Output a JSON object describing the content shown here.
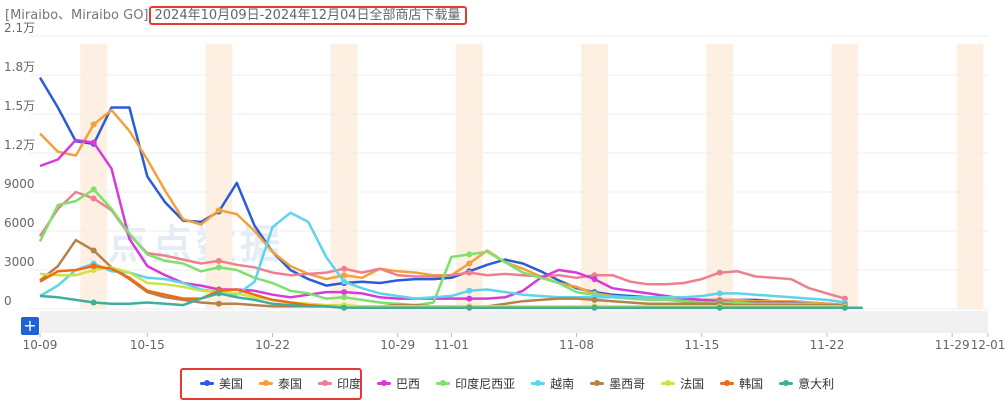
{
  "title": {
    "app": "[Miraibo、Miraibo GO]",
    "range": "2024年10月09日-2024年12月04日全部商店下载量"
  },
  "watermark": "点点数据",
  "add_button": "+",
  "colors": {
    "highlight_border": "#e53935",
    "holiday_band": "#fdf0e2",
    "grid": "#eeeeee"
  },
  "chart_data": {
    "type": "line",
    "title": "2024年10月09日-2024年12月04日全部商店下载量",
    "ylim": [
      0,
      21000
    ],
    "y_ticks": [
      0,
      3000,
      6000,
      9000,
      12000,
      15000,
      18000,
      21000
    ],
    "y_tick_labels": [
      "0",
      "3000",
      "6000",
      "9000",
      "1.2万",
      "1.5万",
      "1.8万",
      "2.1万"
    ],
    "x_range": [
      "2024-10-09",
      "2024-12-01"
    ],
    "x_ticks": [
      "10-09",
      "10-15",
      "10-22",
      "10-29",
      "11-01",
      "11-08",
      "11-15",
      "11-22",
      "11-29",
      "12-01"
    ],
    "x_tick_dates": [
      "2024-10-09",
      "2024-10-15",
      "2024-10-22",
      "2024-10-29",
      "2024-11-01",
      "2024-11-08",
      "2024-11-15",
      "2024-11-22",
      "2024-11-29",
      "2024-12-01"
    ],
    "highlight_dates": [
      "2024-10-12",
      "2024-10-19",
      "2024-10-26",
      "2024-11-02",
      "2024-11-09",
      "2024-11-16",
      "2024-11-23",
      "2024-11-30"
    ],
    "grid": true,
    "legend_position": "bottom",
    "highlighted_series": [
      "美国",
      "泰国",
      "印度"
    ],
    "dates": [
      "2024-10-09",
      "2024-10-10",
      "2024-10-11",
      "2024-10-12",
      "2024-10-13",
      "2024-10-14",
      "2024-10-15",
      "2024-10-16",
      "2024-10-17",
      "2024-10-18",
      "2024-10-19",
      "2024-10-20",
      "2024-10-21",
      "2024-10-22",
      "2024-10-23",
      "2024-10-24",
      "2024-10-25",
      "2024-10-26",
      "2024-10-27",
      "2024-10-28",
      "2024-10-29",
      "2024-10-30",
      "2024-10-31",
      "2024-11-01",
      "2024-11-02",
      "2024-11-03",
      "2024-11-04",
      "2024-11-05",
      "2024-11-06",
      "2024-11-07",
      "2024-11-08",
      "2024-11-09",
      "2024-11-10",
      "2024-11-11",
      "2024-11-12",
      "2024-11-13",
      "2024-11-14",
      "2024-11-15",
      "2024-11-16",
      "2024-11-17",
      "2024-11-18",
      "2024-11-19",
      "2024-11-20",
      "2024-11-21",
      "2024-11-22",
      "2024-11-23",
      "2024-11-24",
      "2024-11-25",
      "2024-11-26",
      "2024-11-27",
      "2024-11-28",
      "2024-11-29",
      "2024-11-30",
      "2024-12-01"
    ],
    "series": [
      {
        "name": "美国",
        "color": "#2b5bd8",
        "values": [
          17800,
          15500,
          12900,
          12700,
          15500,
          15500,
          10200,
          8200,
          6800,
          6700,
          7500,
          9700,
          6400,
          4400,
          3000,
          2300,
          1800,
          2000,
          2100,
          2000,
          2200,
          2300,
          2300,
          2400,
          2900,
          3400,
          3800,
          3500,
          2900,
          2200,
          1600,
          1300,
          1100,
          1000,
          900,
          900,
          800,
          700,
          700,
          700,
          700,
          600,
          600,
          500,
          400,
          300,
          null,
          null,
          null,
          null,
          null,
          null,
          null,
          null
        ]
      },
      {
        "name": "泰国",
        "color": "#f2a23c",
        "values": [
          13500,
          12100,
          11800,
          14200,
          15300,
          13700,
          11500,
          9100,
          6900,
          6500,
          7600,
          7300,
          6000,
          4400,
          3300,
          2700,
          2300,
          2600,
          2400,
          3100,
          2900,
          2800,
          2600,
          2600,
          3500,
          4500,
          3600,
          3100,
          2500,
          2000,
          1700,
          1200,
          1000,
          900,
          800,
          800,
          800,
          700,
          700,
          700,
          600,
          600,
          600,
          500,
          400,
          300,
          null,
          null,
          null,
          null,
          null,
          null,
          null,
          null
        ]
      },
      {
        "name": "印度",
        "color": "#ee7f8f",
        "values": [
          5600,
          7700,
          9000,
          8500,
          7600,
          5700,
          4300,
          4100,
          3800,
          3500,
          3700,
          3400,
          3200,
          2800,
          2600,
          2700,
          2800,
          3100,
          2800,
          3100,
          2600,
          2500,
          2500,
          2600,
          2800,
          2600,
          2700,
          2600,
          2500,
          2600,
          2400,
          2600,
          2600,
          2100,
          1900,
          1900,
          2000,
          2300,
          2800,
          2900,
          2500,
          2400,
          2300,
          1600,
          1200,
          800,
          null,
          null,
          null,
          null,
          null,
          null,
          null,
          null
        ]
      },
      {
        "name": "巴西",
        "color": "#d63ad9",
        "values": [
          11000,
          11500,
          13000,
          12800,
          10800,
          5400,
          3300,
          2600,
          2000,
          1800,
          1500,
          1500,
          1400,
          1100,
          900,
          1100,
          1300,
          1300,
          1200,
          900,
          800,
          800,
          800,
          800,
          800,
          800,
          900,
          1400,
          2400,
          3000,
          2800,
          2300,
          1600,
          1400,
          1200,
          1000,
          800,
          700,
          600,
          500,
          500,
          500,
          500,
          400,
          300,
          300,
          null,
          null,
          null,
          null,
          null,
          null,
          null,
          null
        ]
      },
      {
        "name": "印度尼西亚",
        "color": "#7fe06d",
        "values": [
          5200,
          8000,
          8300,
          9200,
          7700,
          5800,
          4200,
          3700,
          3500,
          2900,
          3200,
          3000,
          2400,
          2000,
          1400,
          1200,
          800,
          900,
          700,
          500,
          400,
          300,
          500,
          4000,
          4200,
          4400,
          3600,
          2800,
          2400,
          2000,
          1300,
          1100,
          900,
          800,
          700,
          700,
          600,
          500,
          500,
          500,
          400,
          400,
          400,
          400,
          300,
          300,
          null,
          null,
          null,
          null,
          null,
          null,
          null,
          null
        ]
      },
      {
        "name": "越南",
        "color": "#5dd4ea",
        "values": [
          1000,
          1800,
          3000,
          3500,
          2900,
          2800,
          2400,
          2300,
          2000,
          1500,
          1300,
          1100,
          2100,
          6300,
          7400,
          6700,
          4000,
          2100,
          1600,
          1200,
          1000,
          800,
          900,
          1000,
          1400,
          1500,
          1300,
          1100,
          1000,
          900,
          900,
          900,
          900,
          900,
          900,
          900,
          900,
          1000,
          1200,
          1200,
          1100,
          1000,
          900,
          800,
          700,
          500,
          null,
          null,
          null,
          null,
          null,
          null,
          null,
          null
        ]
      },
      {
        "name": "墨西哥",
        "color": "#b5824b",
        "values": [
          2200,
          3300,
          5300,
          4500,
          3200,
          2300,
          1300,
          900,
          700,
          500,
          400,
          400,
          300,
          200,
          200,
          200,
          200,
          200,
          200,
          200,
          300,
          300,
          200,
          200,
          200,
          200,
          400,
          600,
          700,
          800,
          800,
          700,
          600,
          500,
          400,
          400,
          400,
          400,
          400,
          300,
          300,
          300,
          300,
          300,
          300,
          300,
          null,
          null,
          null,
          null,
          null,
          null,
          null,
          null
        ]
      },
      {
        "name": "法国",
        "color": "#cde24a",
        "values": [
          2700,
          2600,
          2600,
          3000,
          3200,
          2800,
          2000,
          1900,
          1700,
          1400,
          1300,
          1200,
          900,
          700,
          500,
          400,
          300,
          300,
          200,
          200,
          200,
          200,
          200,
          200,
          200,
          200,
          200,
          200,
          200,
          200,
          200,
          200,
          200,
          200,
          200,
          200,
          200,
          200,
          200,
          200,
          200,
          200,
          200,
          200,
          200,
          200,
          null,
          null,
          null,
          null,
          null,
          null,
          null,
          null
        ]
      },
      {
        "name": "韩国",
        "color": "#f06a12",
        "values": [
          2100,
          2900,
          3000,
          3300,
          3100,
          2400,
          1400,
          1100,
          800,
          800,
          1400,
          1500,
          1100,
          700,
          500,
          300,
          200,
          100,
          100,
          100,
          100,
          100,
          100,
          100,
          100,
          100,
          100,
          100,
          100,
          100,
          100,
          100,
          100,
          100,
          100,
          100,
          100,
          100,
          100,
          100,
          100,
          100,
          100,
          100,
          100,
          100,
          null,
          null,
          null,
          null,
          null,
          null,
          null,
          null
        ]
      },
      {
        "name": "意大利",
        "color": "#3fae9c",
        "values": [
          1000,
          900,
          700,
          500,
          400,
          400,
          500,
          400,
          300,
          800,
          1200,
          900,
          700,
          400,
          300,
          200,
          200,
          100,
          100,
          100,
          100,
          100,
          100,
          100,
          100,
          100,
          100,
          100,
          100,
          100,
          100,
          100,
          100,
          100,
          100,
          100,
          100,
          100,
          100,
          100,
          100,
          100,
          100,
          100,
          100,
          100,
          100,
          null,
          null,
          null,
          null,
          100,
          null,
          100
        ]
      }
    ]
  }
}
